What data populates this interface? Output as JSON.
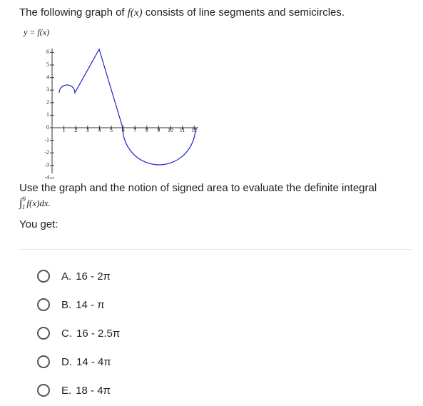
{
  "question": {
    "intro": [
      "The following graph of ",
      "f(x)",
      " consists of line segments and semicircles."
    ],
    "graph": {
      "y_label": "y = f(x)",
      "xticks": [
        1,
        2,
        3,
        4,
        5,
        6,
        7,
        8,
        9,
        10,
        11,
        12
      ],
      "yticks": [
        6,
        5,
        4,
        3,
        2,
        1,
        0,
        -1,
        -2,
        -3,
        -4
      ]
    },
    "prompt": "Use the graph and the notion of signed area to evaluate the definite integral",
    "integral": {
      "sign": "∫",
      "lower": "1",
      "upper": "9",
      "integrand": "f(x)dx."
    },
    "answer_label": "You get:",
    "options": [
      {
        "letter": "A.",
        "text": "16 - 2π"
      },
      {
        "letter": "B.",
        "text": "14 - π"
      },
      {
        "letter": "C.",
        "text": "16 - 2.5π"
      },
      {
        "letter": "D.",
        "text": "14 - 4π"
      },
      {
        "letter": "E.",
        "text": "18 - 4π"
      }
    ]
  }
}
